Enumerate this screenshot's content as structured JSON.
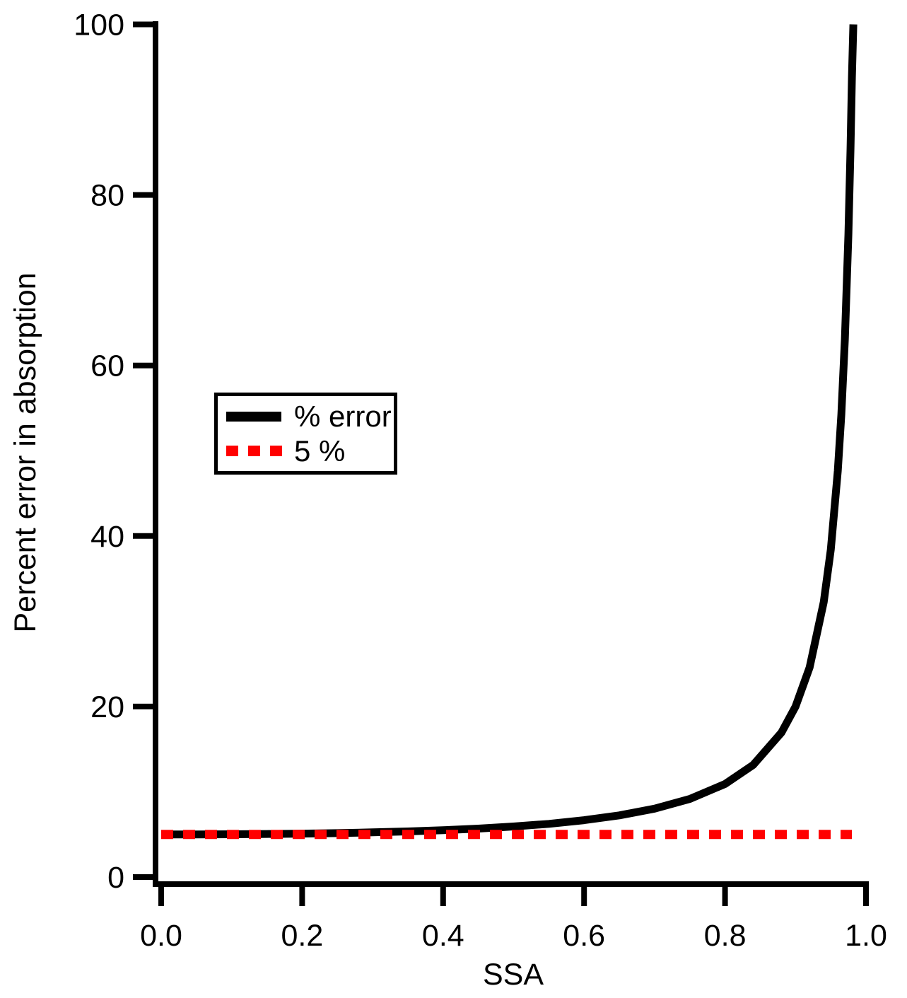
{
  "chart_data": {
    "type": "line",
    "title": "",
    "xlabel": "SSA",
    "ylabel": "Percent error in absorption",
    "xlim": [
      0.0,
      1.0
    ],
    "ylim": [
      0,
      100
    ],
    "grid": false,
    "legend_position": "upper-left-inside",
    "x_tick_values": [
      0.0,
      0.2,
      0.4,
      0.6,
      0.8,
      1.0
    ],
    "x_tick_labels": [
      "0.0",
      "0.2",
      "0.4",
      "0.6",
      "0.8",
      "1.0"
    ],
    "y_tick_values": [
      0,
      20,
      40,
      60,
      80,
      100
    ],
    "y_tick_labels": [
      "0",
      "20",
      "40",
      "60",
      "80",
      "100"
    ],
    "axis_color": "#000000",
    "series": [
      {
        "name": "% error",
        "color": "#000000",
        "style": "solid",
        "points": [
          [
            0.0,
            5.0
          ],
          [
            0.05,
            5.0
          ],
          [
            0.1,
            5.02
          ],
          [
            0.15,
            5.05
          ],
          [
            0.2,
            5.09
          ],
          [
            0.25,
            5.15
          ],
          [
            0.3,
            5.24
          ],
          [
            0.35,
            5.35
          ],
          [
            0.4,
            5.49
          ],
          [
            0.45,
            5.68
          ],
          [
            0.5,
            5.93
          ],
          [
            0.55,
            6.24
          ],
          [
            0.6,
            6.67
          ],
          [
            0.65,
            7.23
          ],
          [
            0.7,
            8.02
          ],
          [
            0.75,
            9.16
          ],
          [
            0.8,
            10.92
          ],
          [
            0.84,
            13.16
          ],
          [
            0.88,
            16.94
          ],
          [
            0.9,
            19.99
          ],
          [
            0.92,
            24.57
          ],
          [
            0.94,
            32.24
          ],
          [
            0.95,
            38.39
          ],
          [
            0.96,
            47.62
          ],
          [
            0.965,
            54.22
          ],
          [
            0.97,
            63.02
          ],
          [
            0.975,
            75.35
          ],
          [
            0.978,
            85.44
          ],
          [
            0.98,
            93.84
          ],
          [
            0.982,
            100.0
          ]
        ]
      },
      {
        "name": "5 %",
        "color": "#FF0000",
        "style": "dashed",
        "points": [
          [
            0.0,
            5.0
          ],
          [
            0.98,
            5.0
          ]
        ]
      }
    ]
  }
}
